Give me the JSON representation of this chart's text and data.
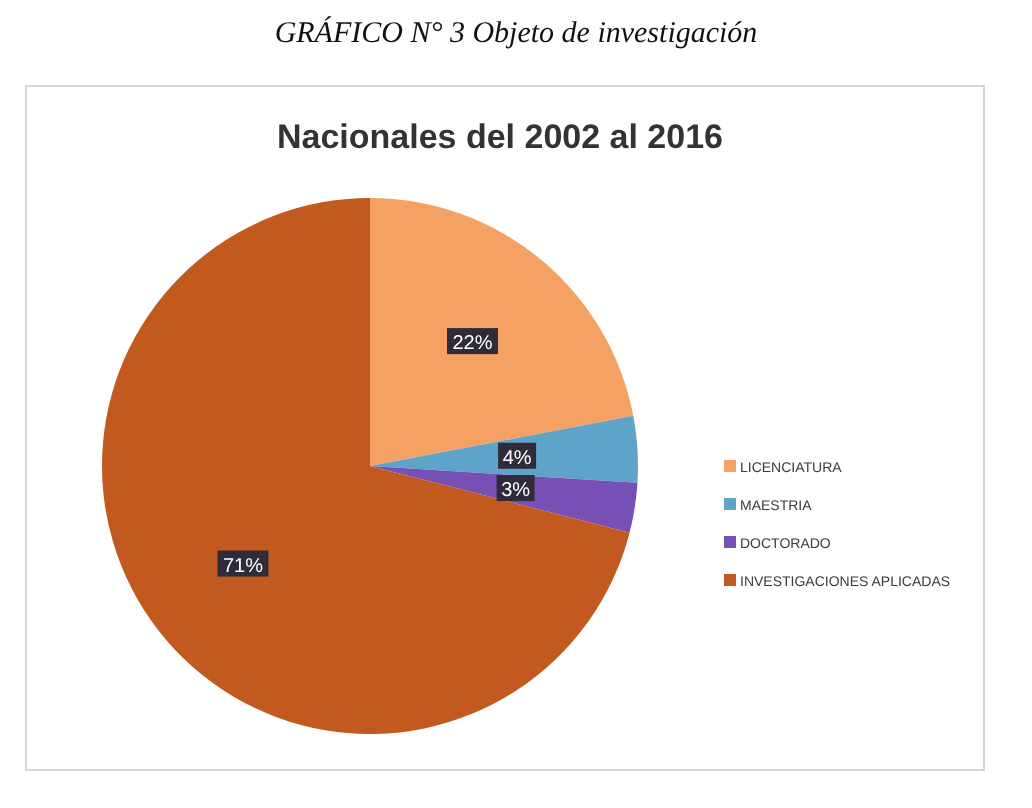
{
  "chart_data": {
    "type": "pie",
    "title": "GRÁFICO N° 3 Objeto de investigación",
    "subtitle": "Nacionales del 2002 al 2016",
    "categories": [
      "LICENCIATURA",
      "MAESTRIA",
      "DOCTORADO",
      "INVESTIGACIONES APLICADAS"
    ],
    "values": [
      22,
      4,
      3,
      71
    ],
    "colors": [
      "#f4a163",
      "#5ea3c8",
      "#7650b4",
      "#c25a1f"
    ],
    "value_labels": [
      "22%",
      "4%",
      "3%",
      "71%"
    ],
    "legend": "right"
  }
}
